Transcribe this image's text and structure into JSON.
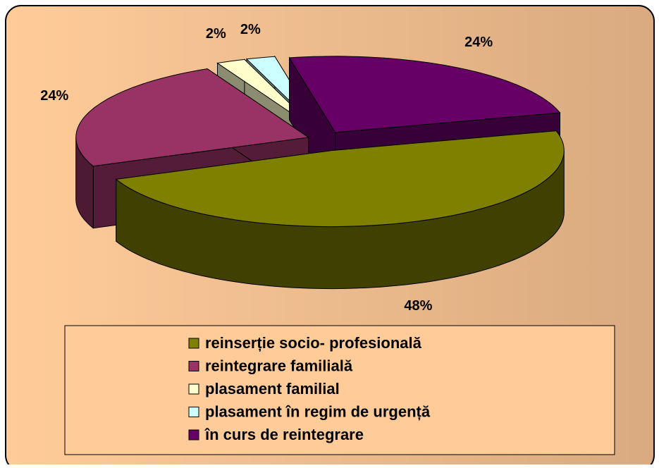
{
  "chart_data": {
    "type": "pie3d",
    "categories": [
      "reinserție socio- profesională",
      "reintegrare familială",
      "plasament familial",
      "plasament în regim de urgență",
      "în curs de reintegrare"
    ],
    "values": [
      48,
      24,
      2,
      2,
      24
    ],
    "value_labels": [
      "48%",
      "24%",
      "2%",
      "2%",
      "24%"
    ],
    "colors": [
      "#808000",
      "#993366",
      "#ffffcc",
      "#ccffff",
      "#660066"
    ]
  }
}
